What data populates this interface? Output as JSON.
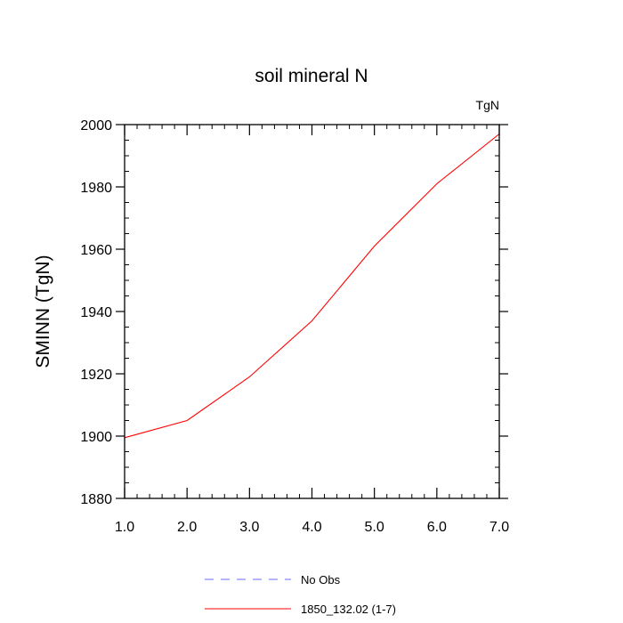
{
  "chart_data": {
    "type": "line",
    "title": "soil mineral N",
    "units": "TgN",
    "ylabel": "SMINN  (TgN)",
    "xlabel": "",
    "xlim": [
      1,
      7
    ],
    "ylim": [
      1880,
      2000
    ],
    "x_ticks": [
      "1.0",
      "2.0",
      "3.0",
      "4.0",
      "5.0",
      "6.0",
      "7.0"
    ],
    "y_ticks": [
      "1880",
      "1900",
      "1920",
      "1940",
      "1960",
      "1980",
      "2000"
    ],
    "series": [
      {
        "name": "1850_132.02 (1-7)",
        "color": "#ff0000",
        "style": "solid",
        "x": [
          1,
          2,
          3,
          4,
          5,
          6,
          7
        ],
        "y": [
          1899.5,
          1905,
          1919,
          1937,
          1961,
          1981,
          1997
        ]
      }
    ],
    "legend": [
      {
        "label": "No Obs",
        "color": "#6b6bff",
        "style": "dashed"
      },
      {
        "label": "1850_132.02 (1-7)",
        "color": "#ff0000",
        "style": "solid"
      }
    ],
    "legend_position": "bottom-center",
    "grid": false
  }
}
